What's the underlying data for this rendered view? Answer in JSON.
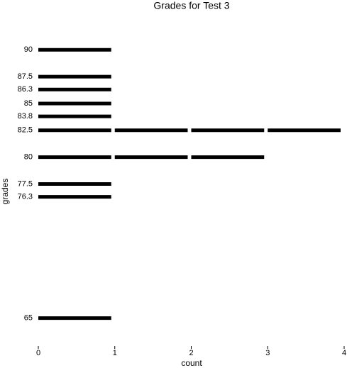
{
  "chart_data": {
    "type": "bar",
    "orientation": "horizontal",
    "title": "Grades for Test 3",
    "xlabel": "count",
    "ylabel": "grades",
    "y": [
      90,
      87.5,
      86.3,
      85,
      83.8,
      82.5,
      80,
      77.5,
      76.3,
      65
    ],
    "values": [
      1,
      1,
      1,
      1,
      1,
      4,
      3,
      1,
      1,
      1
    ],
    "color": "#000000",
    "xlim": [
      0,
      4
    ],
    "xticks": [
      0,
      1,
      2,
      3,
      4
    ],
    "ylim": [
      62.4,
      92
    ],
    "yticks": [
      90,
      87.5,
      86.3,
      85,
      83.8,
      82.5,
      80,
      77.5,
      76.3,
      65
    ]
  }
}
